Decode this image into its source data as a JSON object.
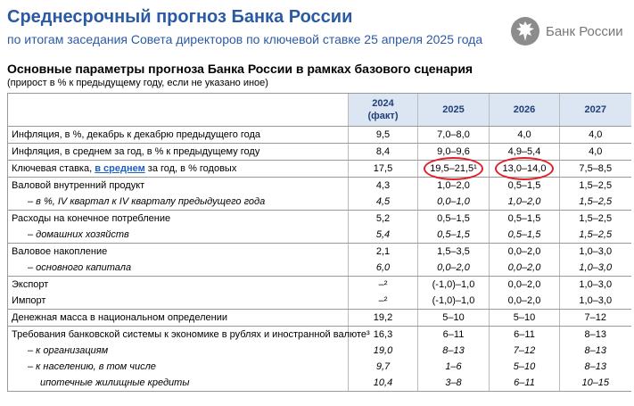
{
  "header": {
    "title": "Среднесрочный прогноз Банка России",
    "subtitle": "по итогам заседания Совета директоров по ключевой ставке 25 апреля 2025 года",
    "logo_text": "Банк России"
  },
  "section": {
    "title": "Основные параметры прогноза Банка России в рамках базового сценария",
    "note": "(прирост в % к предыдущему году, если не указано иное)"
  },
  "table": {
    "header": [
      {
        "year": "2024",
        "note": "(факт)"
      },
      {
        "year": "2025"
      },
      {
        "year": "2026"
      },
      {
        "year": "2027"
      }
    ],
    "groups": [
      {
        "rows": [
          {
            "label": "Инфляция, в %, декабрь к декабрю предыдущего года",
            "values": [
              "9,5",
              "7,0–8,0",
              "4,0",
              "4,0"
            ]
          }
        ]
      },
      {
        "rows": [
          {
            "label": "Инфляция, в среднем за год, в % к предыдущему году",
            "values": [
              "8,4",
              "9,0–9,6",
              "4,9–5,4",
              "4,0"
            ]
          }
        ]
      },
      {
        "rows": [
          {
            "label_parts": [
              {
                "text": "Ключевая ставка, "
              },
              {
                "text": "в среднем",
                "link": true
              },
              {
                "text": " за год, в % годовых"
              }
            ],
            "values": [
              "17,5",
              "19,5–21,5¹",
              "13,0–14,0",
              "7,5–8,5"
            ]
          }
        ]
      },
      {
        "rows": [
          {
            "label": "Валовой внутренний продукт",
            "values": [
              "4,3",
              "1,0–2,0",
              "0,5–1,5",
              "1,5–2,5"
            ]
          },
          {
            "label": "– в %, IV квартал к IV кварталу предыдущего года",
            "style": "sub",
            "values": [
              "4,5",
              "0,0–1,0",
              "1,0–2,0",
              "1,5–2,5"
            ]
          }
        ]
      },
      {
        "rows": [
          {
            "label": "Расходы на конечное потребление",
            "values": [
              "5,2",
              "0,5–1,5",
              "0,5–1,5",
              "1,5–2,5"
            ]
          },
          {
            "label": "– домашних хозяйств",
            "style": "sub",
            "values": [
              "5,4",
              "0,5–1,5",
              "0,5–1,5",
              "1,5–2,5"
            ]
          }
        ]
      },
      {
        "rows": [
          {
            "label": "Валовое накопление",
            "values": [
              "2,1",
              "1,5–3,5",
              "0,0–2,0",
              "1,0–3,0"
            ]
          },
          {
            "label": "– основного капитала",
            "style": "sub",
            "values": [
              "6,0",
              "0,0–2,0",
              "0,0–2,0",
              "1,0–3,0"
            ]
          }
        ]
      },
      {
        "rows": [
          {
            "label": "Экспорт",
            "values": [
              "–²",
              "(-1,0)–1,0",
              "0,0–2,0",
              "1,0–3,0"
            ]
          },
          {
            "label": "Импорт",
            "values": [
              "–²",
              "(-1,0)–1,0",
              "0,0–2,0",
              "1,0–3,0"
            ]
          }
        ]
      },
      {
        "rows": [
          {
            "label": "Денежная масса в национальном определении",
            "values": [
              "19,2",
              "5–10",
              "5–10",
              "7–12"
            ]
          }
        ]
      },
      {
        "rows": [
          {
            "label": "Требования банковской системы к экономике в рублях и иностранной валюте³",
            "values": [
              "16,3",
              "6–11",
              "6–11",
              "8–13"
            ]
          },
          {
            "label": "– к организациям",
            "style": "sub",
            "values": [
              "19,0",
              "8–13",
              "7–12",
              "8–13"
            ]
          },
          {
            "label": "– к населению, в том числе",
            "style": "sub",
            "values": [
              "9,7",
              "1–6",
              "5–10",
              "8–13"
            ]
          },
          {
            "label": "ипотечные жилищные кредиты",
            "style": "sub2",
            "values": [
              "10,4",
              "3–8",
              "6–11",
              "10–15"
            ]
          }
        ]
      }
    ]
  }
}
